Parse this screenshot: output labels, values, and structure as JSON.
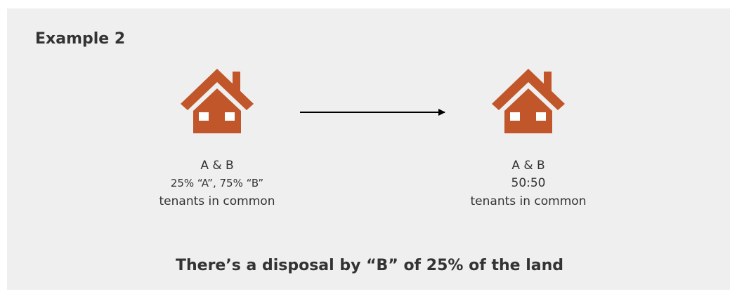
{
  "title": "Example 2",
  "left": {
    "lines": [
      "A & B",
      "25% “A”, 75% “B”",
      "tenants in common"
    ]
  },
  "right": {
    "lines": [
      "A & B",
      "50:50",
      "tenants in common"
    ]
  },
  "caption": "There’s a disposal by “B” of 25% of the land"
}
